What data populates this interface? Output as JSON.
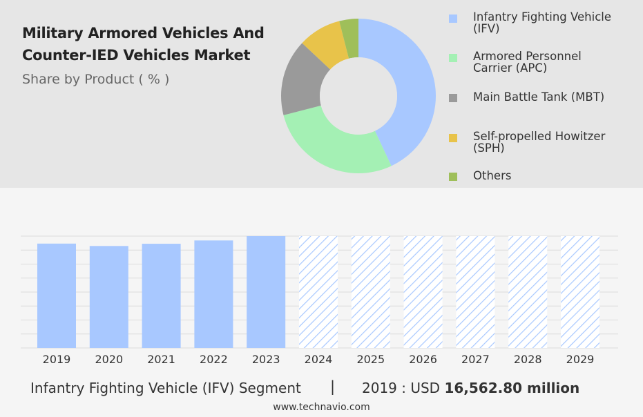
{
  "header": {
    "title": "Military Armored Vehicles And Counter-IED Vehicles Market",
    "subtitle": "Share by Product ( % )"
  },
  "footer": {
    "segment": "Infantry Fighting Vehicle (IFV) Segment",
    "separator": "|",
    "year_label": "2019 : USD",
    "value": "16,562.80 million",
    "site": "www.technavio.com"
  },
  "chart_data": [
    {
      "type": "pie",
      "donut": true,
      "title": "Share by Product ( % )",
      "legend_position": "right",
      "series": [
        {
          "name": "Infantry Fighting Vehicle (IFV)",
          "label_lines": [
            "Infantry Fighting Vehicle",
            "(IFV)"
          ],
          "value": 43,
          "color": "#a8c8ff"
        },
        {
          "name": "Armored Personnel Carrier (APC)",
          "label_lines": [
            "Armored Personnel",
            "Carrier (APC)"
          ],
          "value": 28,
          "color": "#a4f0b4"
        },
        {
          "name": "Main Battle Tank (MBT)",
          "label_lines": [
            "Main Battle Tank (MBT)"
          ],
          "value": 16,
          "color": "#9a9a9a"
        },
        {
          "name": "Self-propelled Howitzer (SPH)",
          "label_lines": [
            "Self-propelled Howitzer",
            "(SPH)"
          ],
          "value": 9,
          "color": "#e8c34a"
        },
        {
          "name": "Others",
          "label_lines": [
            "Others"
          ],
          "value": 4,
          "color": "#9fbf5a"
        }
      ]
    },
    {
      "type": "bar",
      "categories": [
        "2019",
        "2020",
        "2021",
        "2022",
        "2023",
        "2024",
        "2025",
        "2026",
        "2027",
        "2028",
        "2029"
      ],
      "values": [
        16562.8,
        16180,
        16540,
        17060,
        17750,
        null,
        null,
        null,
        null,
        null,
        null
      ],
      "forecast_from": "2024",
      "ylim": [
        0,
        17750
      ],
      "grid": true,
      "color": "#a8c8ff",
      "forecast_color": "#a8c8ff"
    }
  ]
}
